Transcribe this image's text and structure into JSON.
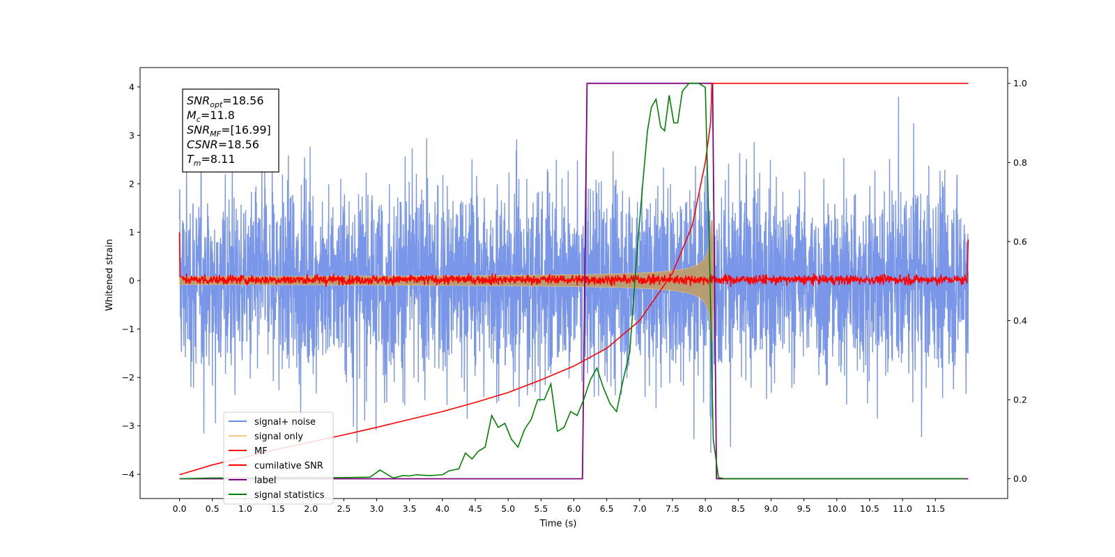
{
  "chart_data": {
    "type": "line",
    "xlabel": "Time (s)",
    "ylabel": "Whitened strain",
    "xlim": [
      -0.6,
      12.6
    ],
    "ylim": [
      -4.5,
      4.4
    ],
    "ylim_right": [
      -0.05,
      1.04
    ],
    "x_ticks": [
      0.0,
      0.5,
      1.0,
      1.5,
      2.0,
      2.5,
      3.0,
      3.5,
      4.0,
      4.5,
      5.0,
      5.5,
      6.0,
      6.5,
      7.0,
      7.5,
      8.0,
      8.5,
      9.0,
      9.5,
      10.0,
      10.5,
      11.0,
      11.5
    ],
    "x_tick_labels": [
      "0.0",
      "0.5",
      "1.0",
      "1.5",
      "2.0",
      "2.5",
      "3.0",
      "3.5",
      "4.0",
      "4.5",
      "5.0",
      "5.5",
      "6.0",
      "6.5",
      "7.0",
      "7.5",
      "8.0",
      "8.5",
      "9.0",
      "9.5",
      "10.0",
      "10.5",
      "11.0",
      "11.5"
    ],
    "y_ticks": [
      -4,
      -3,
      -2,
      -1,
      0,
      1,
      2,
      3,
      4
    ],
    "y_tick_labels": [
      "−4",
      "−3",
      "−2",
      "−1",
      "0",
      "1",
      "2",
      "3",
      "4"
    ],
    "y2_ticks": [
      0.0,
      0.2,
      0.4,
      0.6,
      0.8,
      1.0
    ],
    "y2_tick_labels": [
      "0.0",
      "0.2",
      "0.4",
      "0.6",
      "0.8",
      "1.0"
    ],
    "grid": false,
    "legend_position": "lower-left",
    "stats_box": [
      {
        "main": "SNR",
        "sub": "opt",
        "value": "=18.56"
      },
      {
        "main": "M",
        "sub": "c",
        "value": "=11.8"
      },
      {
        "main": "SNR",
        "sub": "MF",
        "value": "=[16.99]"
      },
      {
        "main": "CSNR",
        "sub": "",
        "value": "=18.56"
      },
      {
        "main": "T",
        "sub": "m",
        "value": "=8.11"
      }
    ],
    "series": [
      {
        "name": "signal+ noise",
        "axis": "left",
        "color": "#6a8be6",
        "style": "noise band, amplitude about ±2.5 peaking near ±3.9, t from 0.0 to 12.0"
      },
      {
        "name": "signal only",
        "axis": "left",
        "color": "#f5c77e",
        "style": "chirp growing to amplitude about 1.4 at t = 8.1"
      },
      {
        "name": "MF",
        "axis": "left",
        "color": "#ff0000",
        "style": "narrow band around 0, spikes to 1.0 and 0.85 at the edges"
      },
      {
        "name": "cumilative SNR",
        "axis": "right",
        "x": [
          0.0,
          0.5,
          1.0,
          1.5,
          2.0,
          2.5,
          3.0,
          3.5,
          4.0,
          4.5,
          5.0,
          5.5,
          6.0,
          6.5,
          7.0,
          7.5,
          7.8,
          8.0,
          8.08,
          8.1,
          12.0
        ],
        "y": [
          0.01,
          0.035,
          0.055,
          0.075,
          0.093,
          0.111,
          0.13,
          0.15,
          0.17,
          0.193,
          0.218,
          0.25,
          0.285,
          0.33,
          0.4,
          0.52,
          0.64,
          0.8,
          0.9,
          1.0,
          1.0
        ],
        "color": "#ff0000"
      },
      {
        "name": "label",
        "axis": "right",
        "x": [
          0.0,
          6.13,
          6.2,
          8.11,
          8.17,
          12.0
        ],
        "y": [
          0.0,
          0.0,
          1.0,
          1.0,
          0.0,
          0.0
        ],
        "color": "#800080"
      },
      {
        "name": "signal statistics",
        "axis": "right",
        "x": [
          0.0,
          0.5,
          1.0,
          1.5,
          2.0,
          2.5,
          2.9,
          3.05,
          3.15,
          3.25,
          3.4,
          3.5,
          3.6,
          3.8,
          4.0,
          4.1,
          4.25,
          4.35,
          4.45,
          4.55,
          4.65,
          4.75,
          4.85,
          4.95,
          5.05,
          5.15,
          5.25,
          5.35,
          5.45,
          5.55,
          5.65,
          5.75,
          5.85,
          5.95,
          6.05,
          6.15,
          6.25,
          6.35,
          6.45,
          6.55,
          6.65,
          6.75,
          6.85,
          6.95,
          7.05,
          7.12,
          7.18,
          7.25,
          7.32,
          7.38,
          7.45,
          7.52,
          7.58,
          7.65,
          7.75,
          7.9,
          8.0,
          8.06,
          8.12,
          8.2,
          8.3,
          9.0,
          10.0,
          11.0,
          11.95
        ],
        "y": [
          0.0,
          0.002,
          0.002,
          0.003,
          0.003,
          0.003,
          0.004,
          0.022,
          0.012,
          0.002,
          0.008,
          0.007,
          0.01,
          0.008,
          0.01,
          0.02,
          0.025,
          0.065,
          0.05,
          0.07,
          0.08,
          0.16,
          0.13,
          0.14,
          0.1,
          0.08,
          0.125,
          0.15,
          0.2,
          0.2,
          0.24,
          0.12,
          0.13,
          0.17,
          0.16,
          0.2,
          0.25,
          0.28,
          0.23,
          0.19,
          0.17,
          0.25,
          0.32,
          0.55,
          0.75,
          0.88,
          0.94,
          0.96,
          0.89,
          0.88,
          0.97,
          0.9,
          0.9,
          0.98,
          1.0,
          1.0,
          0.99,
          0.6,
          0.1,
          0.003,
          0.0,
          0.0,
          0.0,
          0.0,
          0.0
        ],
        "color": "#008000"
      }
    ]
  }
}
